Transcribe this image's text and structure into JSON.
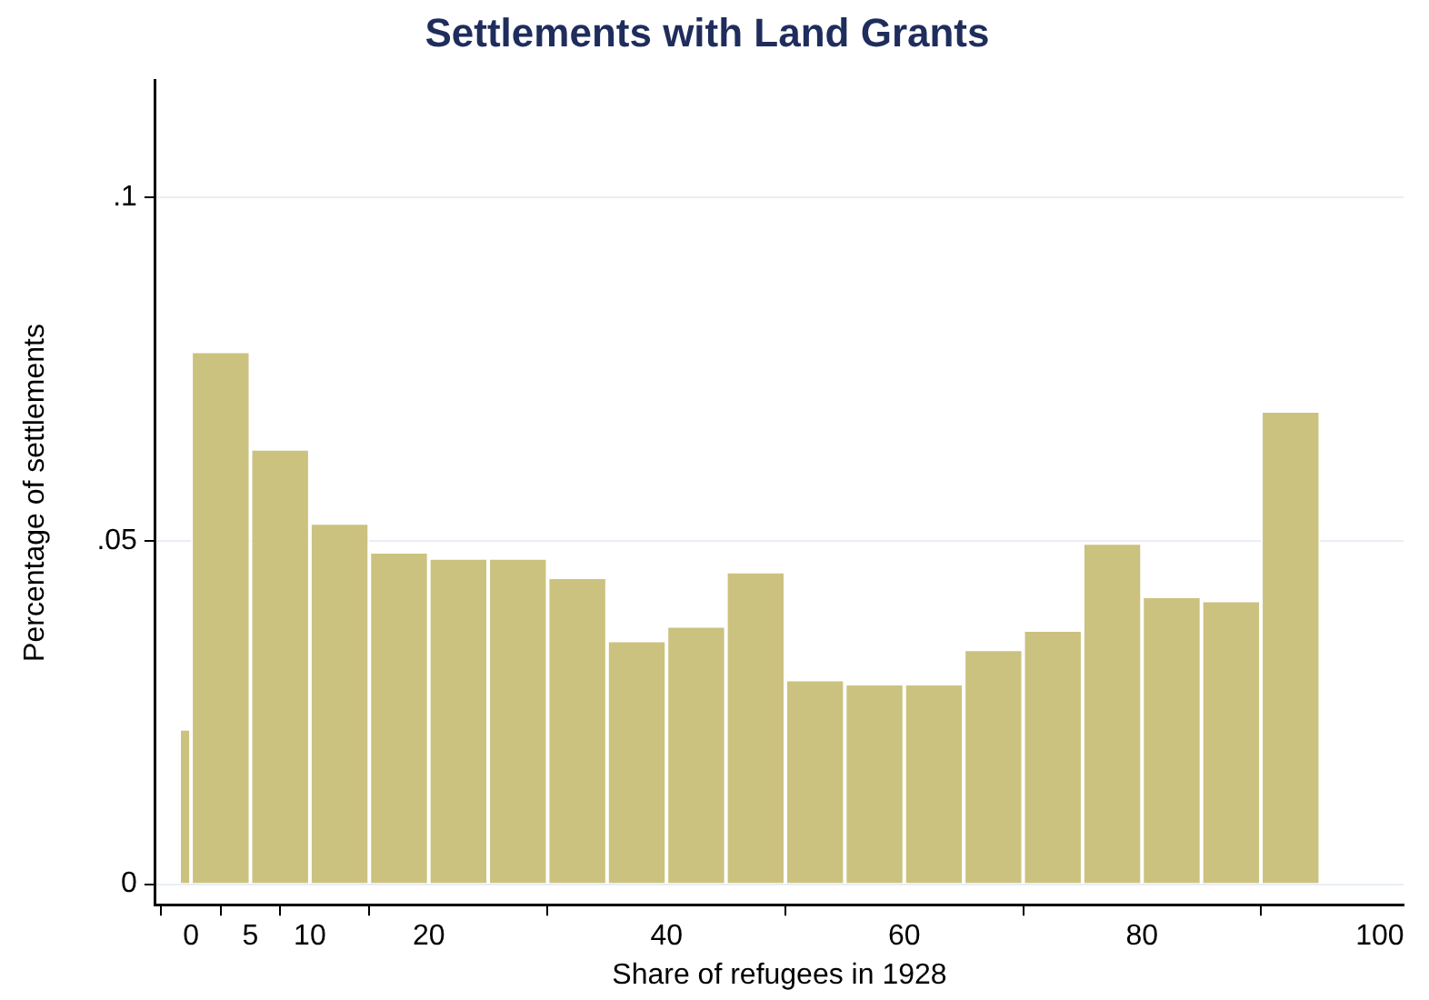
{
  "chart_data": {
    "type": "histogram",
    "title": "Settlements with Land Grants",
    "xlabel": "Share of refugees in 1928",
    "ylabel": "Percentage of settlements",
    "bins": [
      -1,
      0,
      5,
      10,
      15,
      20,
      25,
      30,
      35,
      40,
      45,
      50,
      55,
      60,
      65,
      70,
      75,
      80,
      85,
      90,
      95
    ],
    "values": [
      0.0226,
      0.0776,
      0.0634,
      0.0526,
      0.0484,
      0.0475,
      0.0475,
      0.0447,
      0.0355,
      0.0376,
      0.0455,
      0.0298,
      0.0292,
      0.0292,
      0.0342,
      0.037,
      0.0497,
      0.0419,
      0.0413,
      0.0689
    ],
    "color": "#cbc27f",
    "xlim": [
      -3,
      102
    ],
    "xticks": [
      0,
      5,
      10,
      20,
      40,
      60,
      80,
      100
    ],
    "ylim": [
      -0.003,
      0.117
    ],
    "yticks": [
      {
        "value": 0,
        "label": "0"
      },
      {
        "value": 0.05,
        "label": ".05"
      },
      {
        "value": 0.1,
        "label": ".1"
      }
    ],
    "grid": "y"
  }
}
